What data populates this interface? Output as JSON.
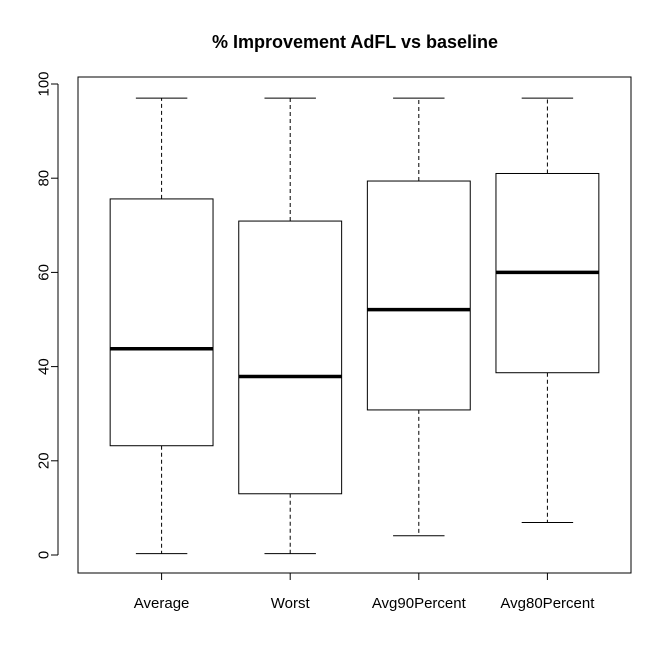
{
  "chart_data": {
    "type": "boxplot",
    "title": "% Improvement AdFL vs baseline",
    "xlabel": "",
    "ylabel": "",
    "ylim": [
      0,
      100
    ],
    "yticks": [
      "0",
      "20",
      "40",
      "60",
      "80",
      "100"
    ],
    "grid": false,
    "categories": [
      "Average",
      "Worst",
      "Avg90Percent",
      "Avg80Percent"
    ],
    "series": [
      {
        "category": "Average",
        "min": 0.3,
        "q1": 23.2,
        "median": 43.8,
        "q3": 75.6,
        "max": 97.0
      },
      {
        "category": "Worst",
        "min": 0.3,
        "q1": 13.0,
        "median": 37.9,
        "q3": 70.9,
        "max": 97.0
      },
      {
        "category": "Avg90Percent",
        "min": 4.1,
        "q1": 30.8,
        "median": 52.1,
        "q3": 79.4,
        "max": 97.0
      },
      {
        "category": "Avg80Percent",
        "min": 6.9,
        "q1": 38.7,
        "median": 60.0,
        "q3": 81.0,
        "max": 97.0
      }
    ]
  }
}
